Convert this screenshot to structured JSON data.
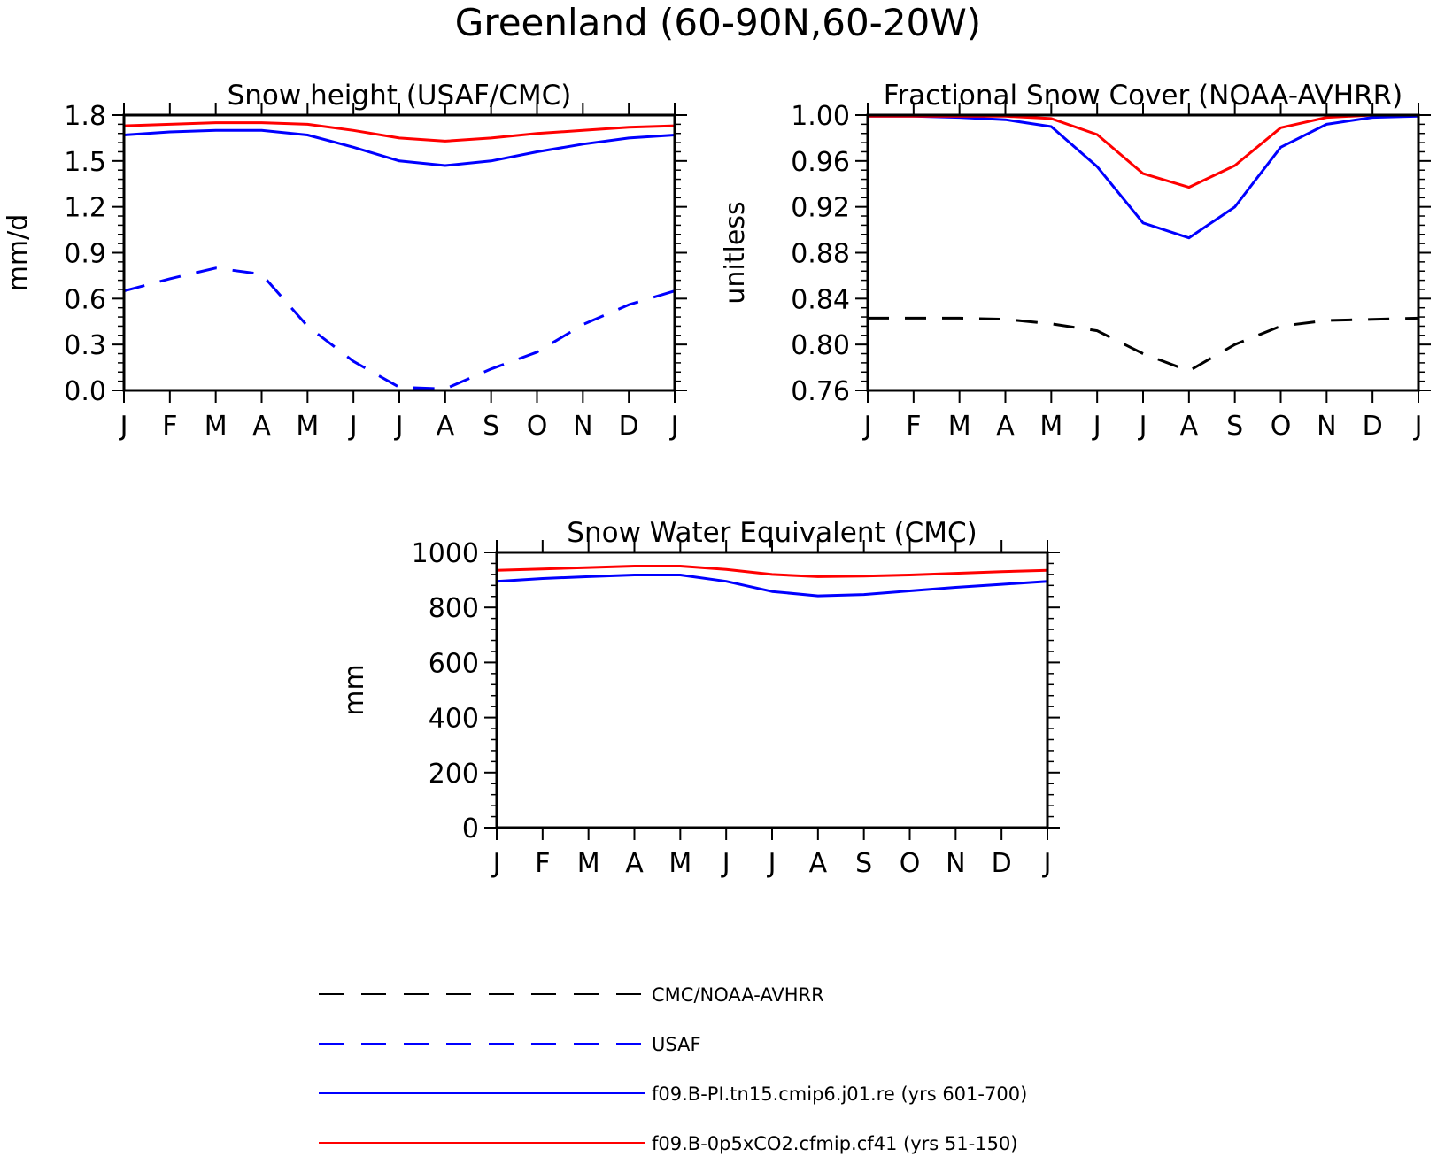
{
  "figure": {
    "title": "Greenland (60-90N,60-20W)"
  },
  "colors": {
    "obs_cmc": "#000000",
    "obs_usaf": "#0000ff",
    "case_pi": "#0000ff",
    "case_0p5xco2": "#ff0000"
  },
  "legend": [
    {
      "label": "CMC/NOAA-AVHRR",
      "color": "#000000",
      "dash": true
    },
    {
      "label": "USAF",
      "color": "#0000ff",
      "dash": true
    },
    {
      "label": "f09.B-PI.tn15.cmip6.j01.re (yrs 601-700)",
      "color": "#0000ff",
      "dash": false
    },
    {
      "label": "f09.B-0p5xCO2.cfmip.cf41 (yrs 51-150)",
      "color": "#ff0000",
      "dash": false
    }
  ],
  "chart_data": [
    {
      "type": "line",
      "title": "Snow height (USAF/CMC)",
      "ylabel": "mm/d",
      "xlabel": "",
      "categories": [
        "J",
        "F",
        "M",
        "A",
        "M",
        "J",
        "J",
        "A",
        "S",
        "O",
        "N",
        "D",
        "J"
      ],
      "ylim": [
        0,
        1.8
      ],
      "yticks": [
        "0.0",
        "0.3",
        "0.6",
        "0.9",
        "1.2",
        "1.5",
        "1.8"
      ],
      "series": [
        {
          "name": "CMC/NOAA-AVHRR",
          "color": "#000000",
          "dash": true,
          "values": [
            0,
            0,
            0,
            0,
            0,
            0,
            0,
            0,
            0,
            0,
            0,
            0,
            0
          ]
        },
        {
          "name": "USAF",
          "color": "#0000ff",
          "dash": true,
          "values": [
            0.65,
            0.73,
            0.8,
            0.76,
            0.42,
            0.19,
            0.02,
            0.01,
            0.14,
            0.25,
            0.43,
            0.56,
            0.65
          ]
        },
        {
          "name": "f09.B-PI.tn15.cmip6.j01.re (yrs 601-700)",
          "color": "#0000ff",
          "dash": false,
          "values": [
            1.67,
            1.69,
            1.7,
            1.7,
            1.67,
            1.59,
            1.5,
            1.47,
            1.5,
            1.56,
            1.61,
            1.65,
            1.67
          ]
        },
        {
          "name": "f09.B-0p5xCO2.cfmip.cf41 (yrs 51-150)",
          "color": "#ff0000",
          "dash": false,
          "values": [
            1.73,
            1.74,
            1.75,
            1.75,
            1.74,
            1.7,
            1.65,
            1.63,
            1.65,
            1.68,
            1.7,
            1.72,
            1.73
          ]
        }
      ]
    },
    {
      "type": "line",
      "title": "Fractional Snow Cover (NOAA-AVHRR)",
      "ylabel": "unitless",
      "xlabel": "",
      "categories": [
        "J",
        "F",
        "M",
        "A",
        "M",
        "J",
        "J",
        "A",
        "S",
        "O",
        "N",
        "D",
        "J"
      ],
      "ylim": [
        0.76,
        1.0
      ],
      "yticks": [
        "0.76",
        "0.80",
        "0.84",
        "0.88",
        "0.92",
        "0.96",
        "1.00"
      ],
      "series": [
        {
          "name": "CMC/NOAA-AVHRR",
          "color": "#000000",
          "dash": true,
          "values": [
            0.823,
            0.823,
            0.823,
            0.822,
            0.818,
            0.812,
            0.792,
            0.777,
            0.8,
            0.816,
            0.821,
            0.822,
            0.823
          ]
        },
        {
          "name": "f09.B-PI.tn15.cmip6.j01.re (yrs 601-700)",
          "color": "#0000ff",
          "dash": false,
          "values": [
            0.999,
            0.999,
            0.998,
            0.996,
            0.99,
            0.955,
            0.906,
            0.893,
            0.92,
            0.972,
            0.992,
            0.998,
            0.999
          ]
        },
        {
          "name": "f09.B-0p5xCO2.cfmip.cf41 (yrs 51-150)",
          "color": "#ff0000",
          "dash": false,
          "values": [
            0.999,
            0.999,
            0.999,
            0.999,
            0.997,
            0.983,
            0.949,
            0.937,
            0.956,
            0.989,
            0.998,
            1.0,
            1.0
          ]
        }
      ]
    },
    {
      "type": "line",
      "title": "Snow Water Equivalent (CMC)",
      "ylabel": "mm",
      "xlabel": "",
      "categories": [
        "J",
        "F",
        "M",
        "A",
        "M",
        "J",
        "J",
        "A",
        "S",
        "O",
        "N",
        "D",
        "J"
      ],
      "ylim": [
        0,
        1000
      ],
      "yticks": [
        "0",
        "200",
        "400",
        "600",
        "800",
        "1000"
      ],
      "series": [
        {
          "name": "CMC/NOAA-AVHRR",
          "color": "#000000",
          "dash": true,
          "values": [
            0,
            0,
            0,
            0,
            0,
            0,
            0,
            0,
            0,
            0,
            0,
            0,
            0
          ]
        },
        {
          "name": "f09.B-PI.tn15.cmip6.j01.re (yrs 601-700)",
          "color": "#0000ff",
          "dash": false,
          "values": [
            895,
            905,
            912,
            918,
            918,
            895,
            858,
            842,
            847,
            860,
            873,
            884,
            895
          ]
        },
        {
          "name": "f09.B-0p5xCO2.cfmip.cf41 (yrs 51-150)",
          "color": "#ff0000",
          "dash": false,
          "values": [
            935,
            940,
            945,
            950,
            950,
            938,
            920,
            912,
            914,
            918,
            924,
            930,
            935
          ]
        }
      ]
    }
  ]
}
